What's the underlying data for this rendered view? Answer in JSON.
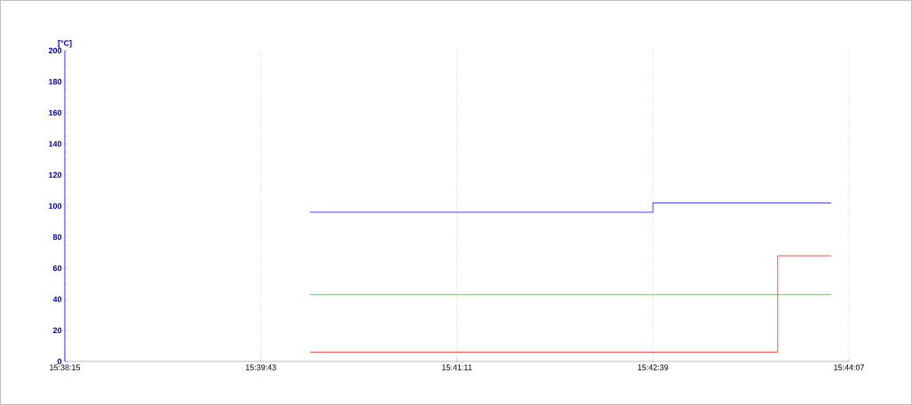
{
  "chart_data": {
    "type": "step",
    "ylabel": "[°C]",
    "series": [
      {
        "color": "#4040ff",
        "x": [
          15.66806,
          15.71083,
          15.73306
        ],
        "values": [
          96,
          102,
          102
        ]
      },
      {
        "color": "#40e040",
        "x": [
          15.66806,
          15.73306
        ],
        "values": [
          43,
          43
        ]
      },
      {
        "color": "#ff5050",
        "x": [
          15.66806,
          15.72639,
          15.73306
        ],
        "values": [
          6,
          68,
          68
        ]
      }
    ],
    "xlim": [
      15.6375,
      15.735278
    ],
    "xticks": [
      {
        "value": 15.6375,
        "label": "15:38:15"
      },
      {
        "value": 15.661944,
        "label": "15:39:43"
      },
      {
        "value": 15.686389,
        "label": "15:41:11"
      },
      {
        "value": 15.710833,
        "label": "15:42:39"
      },
      {
        "value": 15.735278,
        "label": "15:44:07"
      }
    ],
    "ylim": [
      0,
      200
    ],
    "yticks": [
      0,
      20,
      40,
      60,
      80,
      100,
      120,
      140,
      160,
      180,
      200
    ],
    "grid": "x",
    "marker": "none",
    "line_style": "solid"
  }
}
